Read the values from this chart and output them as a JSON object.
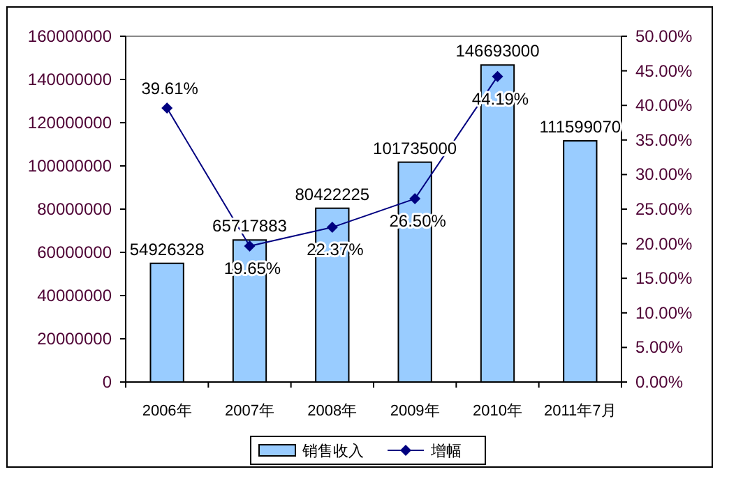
{
  "chart_data": {
    "type": "bar",
    "categories": [
      "2006年",
      "2007年",
      "2008年",
      "2009年",
      "2010年",
      "2011年7月"
    ],
    "series": [
      {
        "name": "销售收入",
        "color": "#99ccff",
        "values": [
          54926328,
          65717883,
          80422225,
          101735000,
          146693000,
          111599070
        ],
        "value_labels": [
          "54926328",
          "65717883",
          "80422225",
          "101735000",
          "146693000",
          "111599070"
        ]
      },
      {
        "name": "增幅",
        "type": "line",
        "axis": "y2",
        "color": "#000080",
        "values": [
          39.61,
          19.65,
          22.37,
          26.5,
          44.19,
          null
        ],
        "value_labels": [
          "39.61%",
          "19.65%",
          "22.37%",
          "26.50%",
          "44.19%",
          null
        ]
      }
    ],
    "ylim": [
      0,
      160000000
    ],
    "yticks": [
      0,
      20000000,
      40000000,
      60000000,
      80000000,
      100000000,
      120000000,
      140000000,
      160000000
    ],
    "y2lim": [
      0,
      50
    ],
    "y2ticks": [
      {
        "value": 0,
        "label": "0.00%"
      },
      {
        "value": 5,
        "label": "5.00%"
      },
      {
        "value": 10,
        "label": "10.00%"
      },
      {
        "value": 15,
        "label": "15.00%"
      },
      {
        "value": 20,
        "label": "20.00%"
      },
      {
        "value": 25,
        "label": "25.00%"
      },
      {
        "value": 30,
        "label": "30.00%"
      },
      {
        "value": 35,
        "label": "35.00%"
      },
      {
        "value": 40,
        "label": "40.00%"
      },
      {
        "value": 45,
        "label": "45.00%"
      },
      {
        "value": 50,
        "label": "50.00%"
      }
    ],
    "marker": "diamond",
    "legend": "bottom",
    "grid": false
  }
}
